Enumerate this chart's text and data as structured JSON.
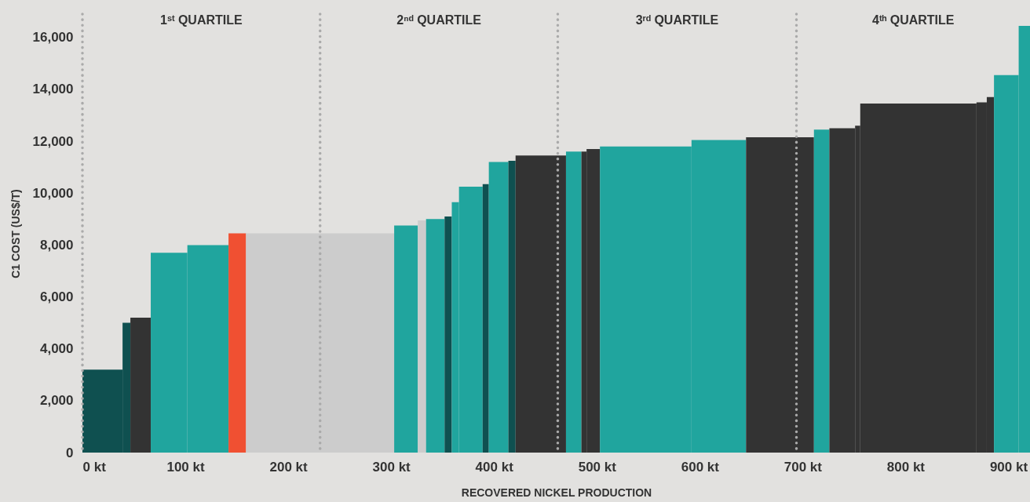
{
  "chart_data": {
    "type": "area",
    "xlabel": "RECOVERED NICKEL PRODUCTION",
    "ylabel": "C1 COST (US$/T)",
    "xlim": [
      0,
      921
    ],
    "ylim": [
      0,
      16900
    ],
    "xticks": [
      {
        "value": 0,
        "label": "0 kt"
      },
      {
        "value": 100,
        "label": "100 kt"
      },
      {
        "value": 200,
        "label": "200 kt"
      },
      {
        "value": 300,
        "label": "300 kt"
      },
      {
        "value": 400,
        "label": "400 kt"
      },
      {
        "value": 500,
        "label": "500 kt"
      },
      {
        "value": 600,
        "label": "600 kt"
      },
      {
        "value": 700,
        "label": "700 kt"
      },
      {
        "value": 800,
        "label": "800 kt"
      },
      {
        "value": 900,
        "label": "900 kt"
      }
    ],
    "yticks": [
      0,
      {
        "value": 2000,
        "label": "2,000"
      },
      {
        "value": 4000,
        "label": "4,000"
      },
      {
        "value": 6000,
        "label": "6,000"
      },
      {
        "value": 8000,
        "label": "8,000"
      },
      {
        "value": 10000,
        "label": "10,000"
      },
      {
        "value": 12000,
        "label": "12,000"
      },
      {
        "value": 14000,
        "label": "14,000"
      },
      {
        "value": 16000,
        "label": "16,000"
      }
    ],
    "annotations": [
      "1ˢᵗ QUARTILE",
      "2ⁿᵈ QUARTILE",
      "3ʳᵈ QUARTILE",
      "4ᵗʰ QUARTILE"
    ],
    "series": [
      {
        "color": "#0f5050",
        "x": [
          0,
          39
        ],
        "values": [
          3200,
          3200
        ]
      },
      {
        "color": "#0f5050",
        "x": [
          39,
          46.6
        ],
        "values": [
          5000,
          5000
        ]
      },
      {
        "color": "#333333",
        "x": [
          46.6,
          66.4
        ],
        "values": [
          5200,
          5200
        ]
      },
      {
        "color": "#20a59e",
        "x": [
          66.4,
          102
        ],
        "values": [
          7700,
          7700
        ]
      },
      {
        "color": "#20a59e",
        "x": [
          102,
          142
        ],
        "values": [
          8000,
          8000
        ]
      },
      {
        "color": "#f05032",
        "x": [
          142,
          159
        ],
        "values": [
          8450,
          8450
        ]
      },
      {
        "color": "#cccccc",
        "x": [
          159,
          303
        ],
        "values": [
          8450,
          8450
        ]
      },
      {
        "color": "#20a59e",
        "x": [
          303,
          326
        ],
        "values": [
          8750,
          8750
        ]
      },
      {
        "color": "#cccccc",
        "x": [
          326,
          334
        ],
        "values": [
          8950,
          8950
        ]
      },
      {
        "color": "#20a59e",
        "x": [
          334,
          352
        ],
        "values": [
          9000,
          9000
        ]
      },
      {
        "color": "#0f5050",
        "x": [
          352,
          359
        ],
        "values": [
          9100,
          9100
        ]
      },
      {
        "color": "#20a59e",
        "x": [
          359,
          366
        ],
        "values": [
          9650,
          9650
        ]
      },
      {
        "color": "#20a59e",
        "x": [
          366,
          389
        ],
        "values": [
          10250,
          10250
        ]
      },
      {
        "color": "#0f5050",
        "x": [
          389,
          395
        ],
        "values": [
          10350,
          10350
        ]
      },
      {
        "color": "#20a59e",
        "x": [
          395,
          414
        ],
        "values": [
          11200,
          11200
        ]
      },
      {
        "color": "#0f5050",
        "x": [
          414,
          421
        ],
        "values": [
          11250,
          11250
        ]
      },
      {
        "color": "#333333",
        "x": [
          421,
          470
        ],
        "values": [
          11450,
          11450
        ]
      },
      {
        "color": "#20a59e",
        "x": [
          470,
          485
        ],
        "values": [
          11600,
          11600
        ]
      },
      {
        "color": "#333333",
        "x": [
          485,
          490
        ],
        "values": [
          11600,
          11600
        ]
      },
      {
        "color": "#333333",
        "x": [
          490,
          503
        ],
        "values": [
          11700,
          11700
        ]
      },
      {
        "color": "#20a59e",
        "x": [
          503,
          592
        ],
        "values": [
          11800,
          11800
        ]
      },
      {
        "color": "#20a59e",
        "x": [
          592,
          645
        ],
        "values": [
          12050,
          12050
        ]
      },
      {
        "color": "#333333",
        "x": [
          645,
          711
        ],
        "values": [
          12150,
          12150
        ]
      },
      {
        "color": "#20a59e",
        "x": [
          711,
          726
        ],
        "values": [
          12450,
          12450
        ]
      },
      {
        "color": "#333333",
        "x": [
          726,
          751
        ],
        "values": [
          12500,
          12500
        ]
      },
      {
        "color": "#333333",
        "x": [
          751,
          756
        ],
        "values": [
          12600,
          12600
        ]
      },
      {
        "color": "#333333",
        "x": [
          756,
          869
        ],
        "values": [
          13450,
          13450
        ]
      },
      {
        "color": "#333333",
        "x": [
          869,
          879
        ],
        "values": [
          13500,
          13500
        ]
      },
      {
        "color": "#333333",
        "x": [
          879,
          886
        ],
        "values": [
          13700,
          13700
        ]
      },
      {
        "color": "#20a59e",
        "x": [
          886,
          910
        ],
        "values": [
          14550,
          14550
        ]
      },
      {
        "color": "#20a59e",
        "x": [
          910,
          921
        ],
        "values": [
          16450,
          16450
        ]
      }
    ],
    "ref_lines": [
      {
        "axis": "x",
        "value": 0,
        "color": "#aaaaaa",
        "line_style": "dotted"
      },
      {
        "axis": "x",
        "value": 231,
        "color": "#aaaaaa",
        "line_style": "dotted"
      },
      {
        "axis": "x",
        "value": 462,
        "color": "#aaaaaa",
        "line_style": "dotted"
      },
      {
        "axis": "x",
        "value": 694,
        "color": "#aaaaaa",
        "line_style": "dotted"
      }
    ]
  }
}
